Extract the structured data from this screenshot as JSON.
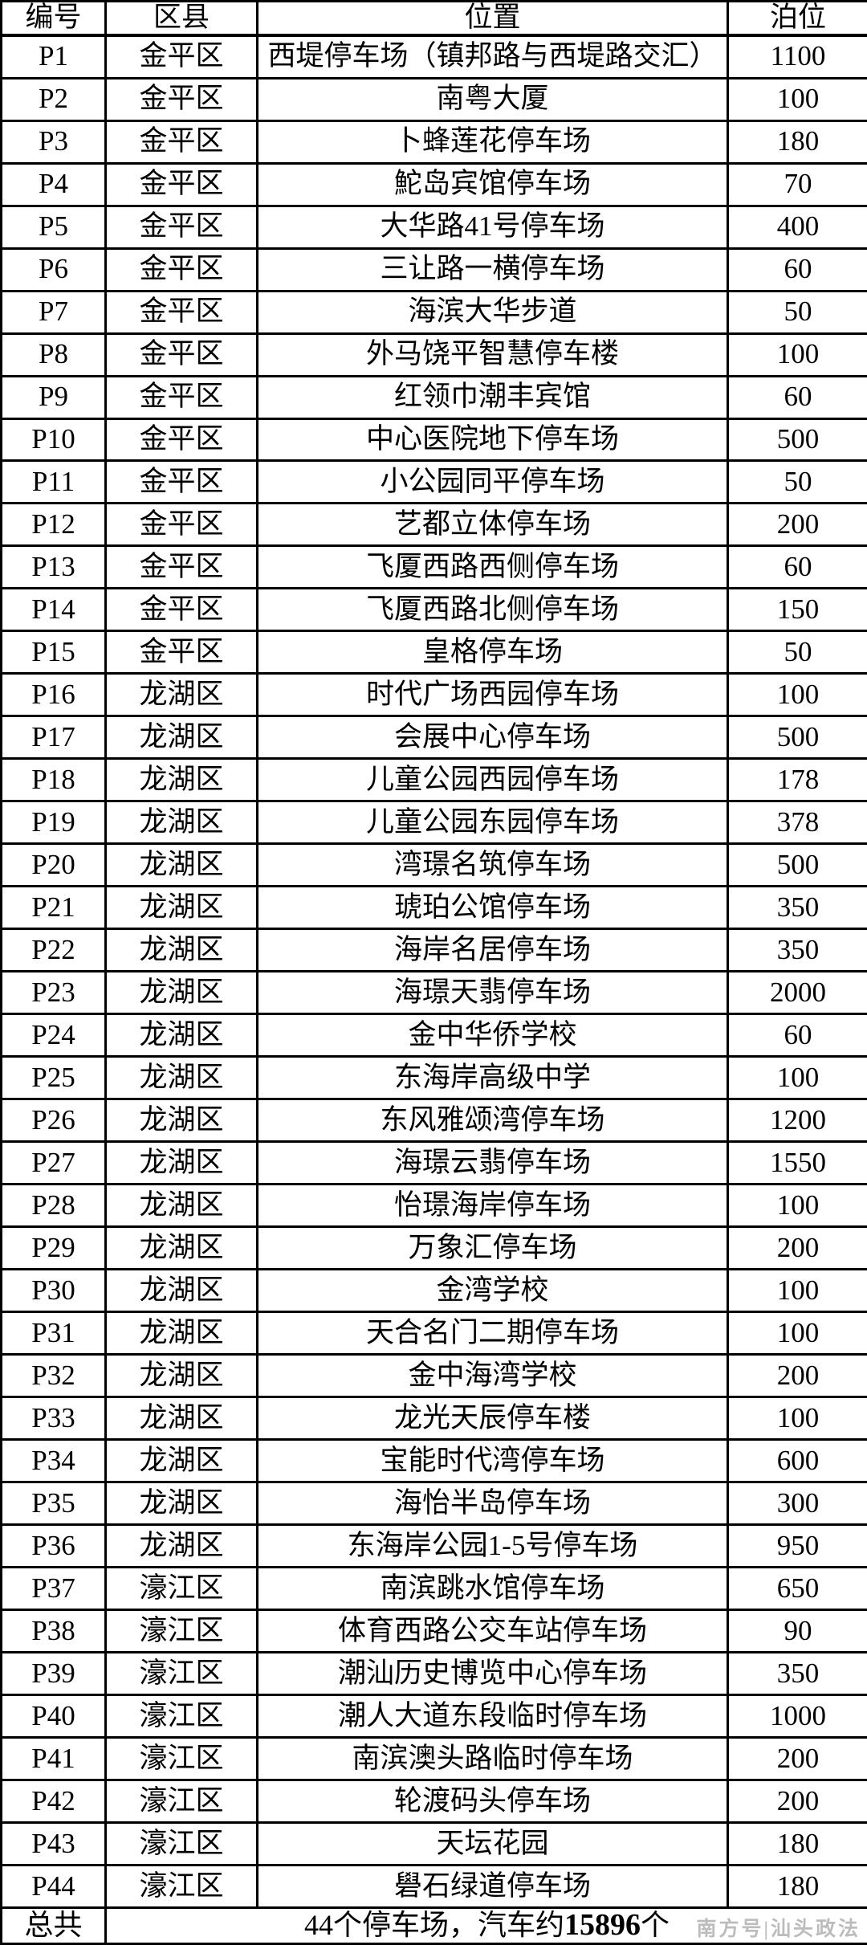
{
  "table": {
    "headers": [
      "编号",
      "区县",
      "位置",
      "泊位"
    ],
    "rows": [
      {
        "id": "P1",
        "district": "金平区",
        "location": "西堤停车场（镇邦路与西堤路交汇）",
        "spaces": "1100"
      },
      {
        "id": "P2",
        "district": "金平区",
        "location": "南粤大厦",
        "spaces": "100"
      },
      {
        "id": "P3",
        "district": "金平区",
        "location": "卜蜂莲花停车场",
        "spaces": "180"
      },
      {
        "id": "P4",
        "district": "金平区",
        "location": "鮀岛宾馆停车场",
        "spaces": "70"
      },
      {
        "id": "P5",
        "district": "金平区",
        "location": "大华路41号停车场",
        "spaces": "400"
      },
      {
        "id": "P6",
        "district": "金平区",
        "location": "三让路一横停车场",
        "spaces": "60"
      },
      {
        "id": "P7",
        "district": "金平区",
        "location": "海滨大华步道",
        "spaces": "50"
      },
      {
        "id": "P8",
        "district": "金平区",
        "location": "外马饶平智慧停车楼",
        "spaces": "100"
      },
      {
        "id": "P9",
        "district": "金平区",
        "location": "红领巾潮丰宾馆",
        "spaces": "60"
      },
      {
        "id": "P10",
        "district": "金平区",
        "location": "中心医院地下停车场",
        "spaces": "500"
      },
      {
        "id": "P11",
        "district": "金平区",
        "location": "小公园同平停车场",
        "spaces": "50"
      },
      {
        "id": "P12",
        "district": "金平区",
        "location": "艺都立体停车场",
        "spaces": "200"
      },
      {
        "id": "P13",
        "district": "金平区",
        "location": "飞厦西路西侧停车场",
        "spaces": "60"
      },
      {
        "id": "P14",
        "district": "金平区",
        "location": "飞厦西路北侧停车场",
        "spaces": "150"
      },
      {
        "id": "P15",
        "district": "金平区",
        "location": "皇格停车场",
        "spaces": "50"
      },
      {
        "id": "P16",
        "district": "龙湖区",
        "location": "时代广场西园停车场",
        "spaces": "100"
      },
      {
        "id": "P17",
        "district": "龙湖区",
        "location": "会展中心停车场",
        "spaces": "500"
      },
      {
        "id": "P18",
        "district": "龙湖区",
        "location": "儿童公园西园停车场",
        "spaces": "178"
      },
      {
        "id": "P19",
        "district": "龙湖区",
        "location": "儿童公园东园停车场",
        "spaces": "378"
      },
      {
        "id": "P20",
        "district": "龙湖区",
        "location": "湾璟名筑停车场",
        "spaces": "500"
      },
      {
        "id": "P21",
        "district": "龙湖区",
        "location": "琥珀公馆停车场",
        "spaces": "350"
      },
      {
        "id": "P22",
        "district": "龙湖区",
        "location": "海岸名居停车场",
        "spaces": "350"
      },
      {
        "id": "P23",
        "district": "龙湖区",
        "location": "海璟天翡停车场",
        "spaces": "2000"
      },
      {
        "id": "P24",
        "district": "龙湖区",
        "location": "金中华侨学校",
        "spaces": "60"
      },
      {
        "id": "P25",
        "district": "龙湖区",
        "location": "东海岸高级中学",
        "spaces": "100"
      },
      {
        "id": "P26",
        "district": "龙湖区",
        "location": "东风雅颂湾停车场",
        "spaces": "1200"
      },
      {
        "id": "P27",
        "district": "龙湖区",
        "location": "海璟云翡停车场",
        "spaces": "1550"
      },
      {
        "id": "P28",
        "district": "龙湖区",
        "location": "怡璟海岸停车场",
        "spaces": "100"
      },
      {
        "id": "P29",
        "district": "龙湖区",
        "location": "万象汇停车场",
        "spaces": "200"
      },
      {
        "id": "P30",
        "district": "龙湖区",
        "location": "金湾学校",
        "spaces": "100"
      },
      {
        "id": "P31",
        "district": "龙湖区",
        "location": "天合名门二期停车场",
        "spaces": "100"
      },
      {
        "id": "P32",
        "district": "龙湖区",
        "location": "金中海湾学校",
        "spaces": "200"
      },
      {
        "id": "P33",
        "district": "龙湖区",
        "location": "龙光天辰停车楼",
        "spaces": "100"
      },
      {
        "id": "P34",
        "district": "龙湖区",
        "location": "宝能时代湾停车场",
        "spaces": "600"
      },
      {
        "id": "P35",
        "district": "龙湖区",
        "location": "海怡半岛停车场",
        "spaces": "300"
      },
      {
        "id": "P36",
        "district": "龙湖区",
        "location": "东海岸公园1-5号停车场",
        "spaces": "950"
      },
      {
        "id": "P37",
        "district": "濠江区",
        "location": "南滨跳水馆停车场",
        "spaces": "650"
      },
      {
        "id": "P38",
        "district": "濠江区",
        "location": "体育西路公交车站停车场",
        "spaces": "90"
      },
      {
        "id": "P39",
        "district": "濠江区",
        "location": "潮汕历史博览中心停车场",
        "spaces": "350"
      },
      {
        "id": "P40",
        "district": "濠江区",
        "location": "潮人大道东段临时停车场",
        "spaces": "1000"
      },
      {
        "id": "P41",
        "district": "濠江区",
        "location": "南滨澳头路临时停车场",
        "spaces": "200"
      },
      {
        "id": "P42",
        "district": "濠江区",
        "location": "轮渡码头停车场",
        "spaces": "200"
      },
      {
        "id": "P43",
        "district": "濠江区",
        "location": "天坛花园",
        "spaces": "180"
      },
      {
        "id": "P44",
        "district": "濠江区",
        "location": "礐石绿道停车场",
        "spaces": "180"
      }
    ],
    "total": {
      "label": "总共",
      "prefix": "44个停车场，汽车约",
      "bold": "15896",
      "suffix": "个"
    }
  },
  "watermark": "南方号|汕头政法",
  "colors": {
    "background": "#ffffff",
    "border": "#000000",
    "text": "#000000",
    "watermark": "#bcbcbc"
  }
}
